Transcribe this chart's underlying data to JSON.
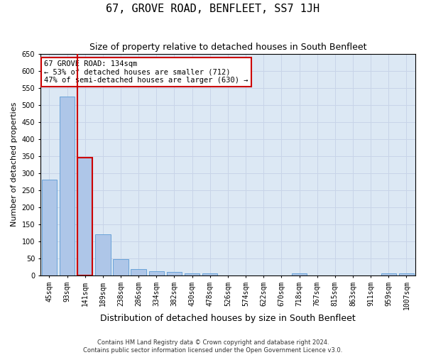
{
  "title": "67, GROVE ROAD, BENFLEET, SS7 1JH",
  "subtitle": "Size of property relative to detached houses in South Benfleet",
  "xlabel": "Distribution of detached houses by size in South Benfleet",
  "ylabel": "Number of detached properties",
  "footer_line1": "Contains HM Land Registry data © Crown copyright and database right 2024.",
  "footer_line2": "Contains public sector information licensed under the Open Government Licence v3.0.",
  "annotation_title": "67 GROVE ROAD: 134sqm",
  "annotation_line1": "← 53% of detached houses are smaller (712)",
  "annotation_line2": "47% of semi-detached houses are larger (630) →",
  "bar_labels": [
    "45sqm",
    "93sqm",
    "141sqm",
    "189sqm",
    "238sqm",
    "286sqm",
    "334sqm",
    "382sqm",
    "430sqm",
    "478sqm",
    "526sqm",
    "574sqm",
    "622sqm",
    "670sqm",
    "718sqm",
    "767sqm",
    "815sqm",
    "863sqm",
    "911sqm",
    "959sqm",
    "1007sqm"
  ],
  "bar_values": [
    280,
    525,
    345,
    120,
    48,
    18,
    12,
    10,
    6,
    5,
    0,
    0,
    0,
    0,
    5,
    0,
    0,
    0,
    0,
    5,
    5
  ],
  "bar_color": "#aec6e8",
  "bar_edge_color": "#5b9bd5",
  "highlight_bar_index": 2,
  "highlight_edge_color": "#cc0000",
  "annotation_box_edge": "#cc0000",
  "annotation_box_face": "#ffffff",
  "ylim": [
    0,
    650
  ],
  "yticks": [
    0,
    50,
    100,
    150,
    200,
    250,
    300,
    350,
    400,
    450,
    500,
    550,
    600,
    650
  ],
  "grid_color": "#c8d4e8",
  "background_color": "#dce8f4",
  "figure_bg": "#ffffff",
  "title_fontsize": 11,
  "subtitle_fontsize": 9,
  "xlabel_fontsize": 9,
  "ylabel_fontsize": 8,
  "tick_fontsize": 7,
  "footer_fontsize": 6
}
